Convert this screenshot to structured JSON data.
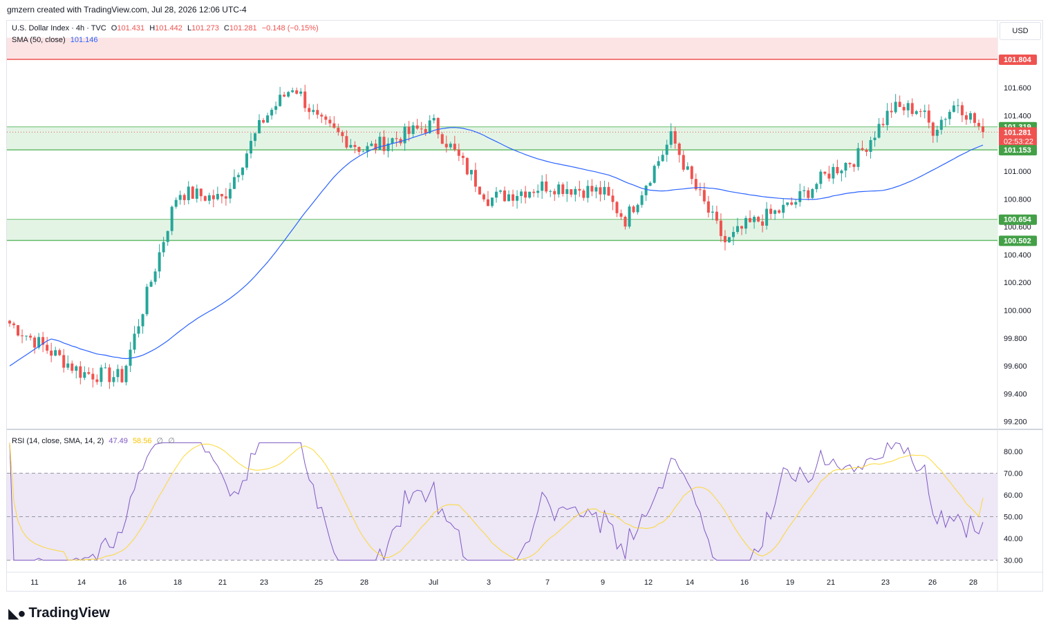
{
  "header": {
    "credit": "gmzern created with TradingView.com, Jul 28, 2026 12:06 UTC-4"
  },
  "symbol_legend": {
    "name": "U.S. Dollar Index · 4h · TVC",
    "open_label": "O",
    "open": "101.431",
    "high_label": "H",
    "high": "101.442",
    "low_label": "L",
    "low": "101.273",
    "close_label": "C",
    "close": "101.281",
    "change": "−0.148 (−0.15%)"
  },
  "sma_legend": {
    "label": "SMA (50, close)",
    "value": "101.146"
  },
  "rsi_legend": {
    "label": "RSI (14, close, SMA, 14, 2)",
    "rsi": "47.49",
    "rsi_ma": "58.56",
    "extra1": "∅",
    "extra2": "∅"
  },
  "currency": "USD",
  "brand": "TradingView",
  "colors": {
    "up": "#26a69a",
    "down": "#ef5350",
    "sma": "#2962ff",
    "rsi": "#7e57c2",
    "rsi_ma": "#fdd835",
    "resistance_zone": "#fce4e4",
    "support_zone": "#e3f4e5",
    "rsi_band": "#ede7f6"
  },
  "chart_data": {
    "type": "candlestick",
    "timeframe": "4h",
    "price_axis": {
      "range": [
        99.1,
        102.0
      ],
      "ticks": [
        "101.600",
        "101.400",
        "101.000",
        "100.800",
        "100.600",
        "100.400",
        "100.200",
        "100.000",
        "99.800",
        "99.600",
        "99.400",
        "99.200"
      ]
    },
    "time_axis": {
      "labels": [
        "11",
        "14",
        "16",
        "18",
        "21",
        "23",
        "25",
        "28",
        "Jul",
        "3",
        "7",
        "9",
        "12",
        "14",
        "16",
        "19",
        "21",
        "23",
        "26",
        "28"
      ]
    },
    "price_labels": [
      {
        "value": 101.804,
        "text": "101.804",
        "kind": "resistance"
      },
      {
        "value": 101.319,
        "text": "101.319",
        "kind": "zone"
      },
      {
        "value": 101.281,
        "text": "101.281",
        "kind": "last",
        "countdown": "02:53:22"
      },
      {
        "value": 101.153,
        "text": "101.153",
        "kind": "zone"
      },
      {
        "value": 100.654,
        "text": "100.654",
        "kind": "zone"
      },
      {
        "value": 100.502,
        "text": "100.502",
        "kind": "zone"
      }
    ],
    "zones": [
      {
        "low": 101.804,
        "high": 101.96,
        "kind": "resistance"
      },
      {
        "low": 101.153,
        "high": 101.319,
        "kind": "support"
      },
      {
        "low": 100.502,
        "high": 100.654,
        "kind": "support"
      }
    ],
    "key_points": [
      {
        "x": "11",
        "close": 99.92
      },
      {
        "x": "14",
        "close": 99.55
      },
      {
        "x": "16",
        "close": 99.52
      },
      {
        "x": "18",
        "close": 100.85
      },
      {
        "x": "21",
        "close": 100.8
      },
      {
        "x": "23",
        "close": 101.38
      },
      {
        "x": "24",
        "close": 101.62
      },
      {
        "x": "25",
        "close": 101.35
      },
      {
        "x": "28",
        "close": 101.15
      },
      {
        "x": "Jul",
        "close": 101.34
      },
      {
        "x": "3",
        "close": 100.8
      },
      {
        "x": "7",
        "close": 100.9
      },
      {
        "x": "9",
        "close": 100.85
      },
      {
        "x": "10",
        "close": 100.65
      },
      {
        "x": "12",
        "close": 100.95
      },
      {
        "x": "13",
        "close": 101.25
      },
      {
        "x": "14",
        "close": 100.95
      },
      {
        "x": "15",
        "close": 100.48
      },
      {
        "x": "16",
        "close": 100.6
      },
      {
        "x": "19",
        "close": 100.75
      },
      {
        "x": "21",
        "close": 101.0
      },
      {
        "x": "22",
        "close": 101.1
      },
      {
        "x": "23",
        "close": 101.45
      },
      {
        "x": "25",
        "close": 101.45
      },
      {
        "x": "26",
        "close": 101.3
      },
      {
        "x": "27",
        "close": 101.5
      },
      {
        "x": "28",
        "close": 101.281
      }
    ],
    "rsi": {
      "axis": {
        "range": [
          25,
          85
        ],
        "ticks": [
          "80.00",
          "70.00",
          "60.00",
          "50.00",
          "40.00",
          "30.00"
        ]
      },
      "bands": [
        30,
        50,
        70
      ],
      "last": 47.49,
      "last_ma": 58.56
    }
  }
}
